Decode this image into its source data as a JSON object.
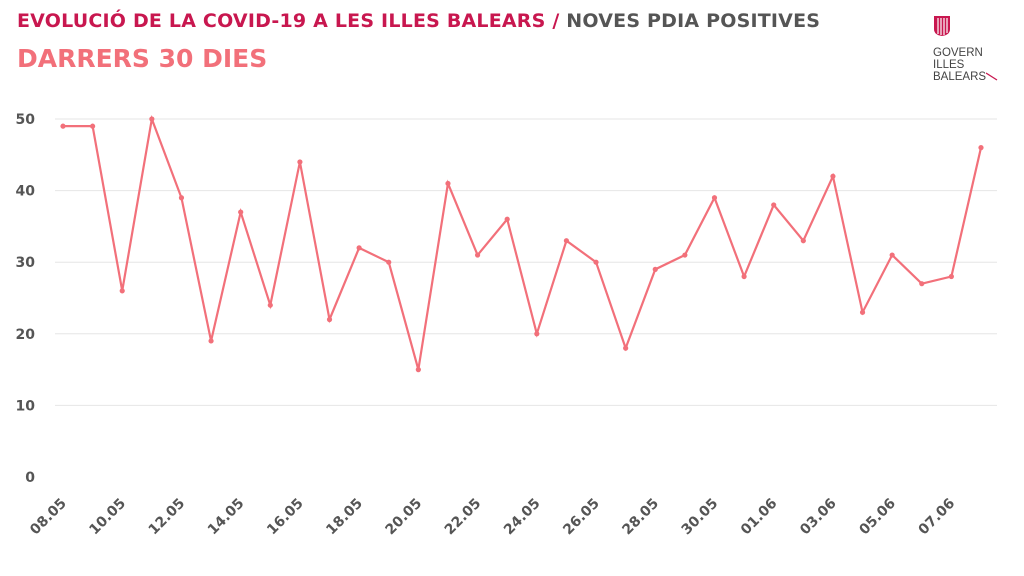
{
  "header": {
    "title_main": "EVOLUCIÓ DE LA COVID-19 A LES ILLES BALEARS",
    "title_sep": " / ",
    "title_secondary": "NOVES PDIA POSITIVES",
    "subtitle": "DARRERS 30 DIES"
  },
  "logo": {
    "line1": "GOVERN",
    "line2": "ILLES",
    "line3": "BALEARS"
  },
  "colors": {
    "line": "#f2707a",
    "title": "#c8174f",
    "grid": "#e6e6e6"
  },
  "chart_data": {
    "type": "line",
    "title": "",
    "xlabel": "",
    "ylabel": "",
    "ylim": [
      0,
      50
    ],
    "yticks": [
      0,
      10,
      20,
      30,
      40,
      50
    ],
    "grid": true,
    "x": [
      "08.05",
      "09.05",
      "10.05",
      "11.05",
      "12.05",
      "13.05",
      "14.05",
      "15.05",
      "16.05",
      "17.05",
      "18.05",
      "19.05",
      "20.05",
      "21.05",
      "22.05",
      "23.05",
      "24.05",
      "25.05",
      "26.05",
      "27.05",
      "28.05",
      "29.05",
      "30.05",
      "31.05",
      "01.06",
      "02.06",
      "03.06",
      "04.06",
      "05.06",
      "06.06",
      "07.06",
      "08.06"
    ],
    "xtick_labels": [
      "08.05",
      "10.05",
      "12.05",
      "14.05",
      "16.05",
      "18.05",
      "20.05",
      "22.05",
      "24.05",
      "26.05",
      "28.05",
      "30.05",
      "01.06",
      "03.06",
      "05.06",
      "07.06"
    ],
    "series": [
      {
        "values": [
          49,
          49,
          26,
          50,
          39,
          19,
          37,
          24,
          44,
          22,
          32,
          30,
          15,
          41,
          31,
          36,
          20,
          33,
          30,
          18,
          29,
          31,
          39,
          28,
          38,
          33,
          42,
          23,
          31,
          27,
          28,
          46
        ]
      }
    ]
  }
}
